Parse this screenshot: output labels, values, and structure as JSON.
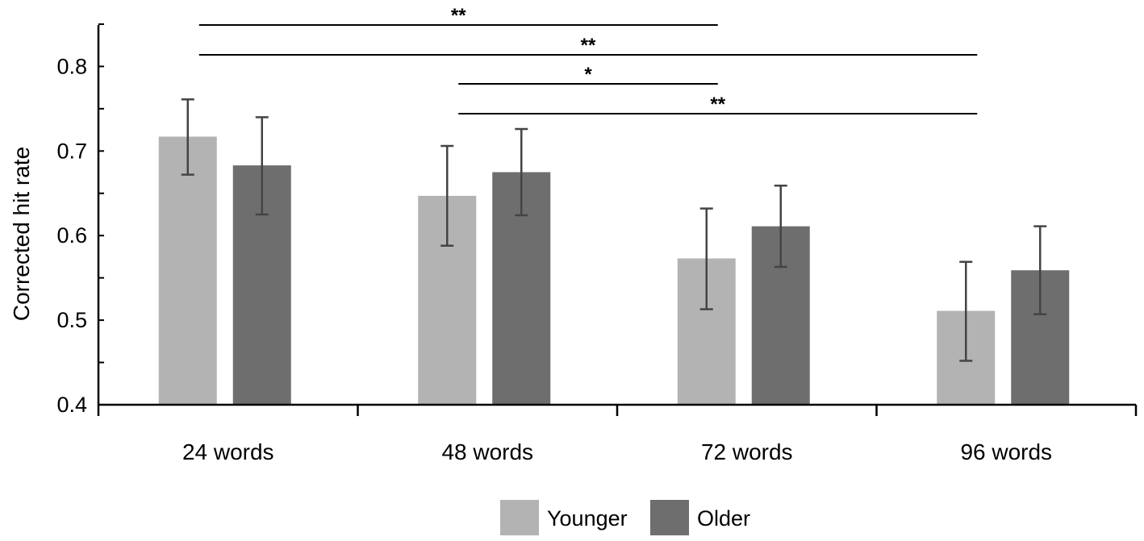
{
  "chart_data": {
    "type": "bar",
    "title": "",
    "xlabel": "",
    "ylabel": "Corrected hit rate",
    "ylim": [
      0.4,
      0.85
    ],
    "yticks": [
      0.4,
      0.5,
      0.6,
      0.7,
      0.8
    ],
    "ytick_labels": [
      "0.4",
      "0.5",
      "0.6",
      "0.7",
      "0.8"
    ],
    "categories": [
      "24 words",
      "48 words",
      "72 words",
      "96 words"
    ],
    "series": [
      {
        "name": "Younger",
        "color": "#b3b3b3",
        "values": [
          0.717,
          0.647,
          0.573,
          0.511
        ],
        "err_low": [
          0.672,
          0.588,
          0.513,
          0.452
        ],
        "err_high": [
          0.761,
          0.706,
          0.632,
          0.569
        ]
      },
      {
        "name": "Older",
        "color": "#6e6e6e",
        "values": [
          0.683,
          0.675,
          0.611,
          0.559
        ],
        "err_low": [
          0.625,
          0.624,
          0.563,
          0.507
        ],
        "err_high": [
          0.74,
          0.726,
          0.659,
          0.611
        ]
      }
    ],
    "legend": {
      "position": "bottom-center"
    },
    "grid": false,
    "significance": [
      {
        "from": "24 words",
        "to": "72 words",
        "label": "**"
      },
      {
        "from": "24 words",
        "to": "96 words",
        "label": "**"
      },
      {
        "from": "48 words",
        "to": "72 words",
        "label": "*"
      },
      {
        "from": "48 words",
        "to": "96 words",
        "label": "**"
      }
    ]
  }
}
